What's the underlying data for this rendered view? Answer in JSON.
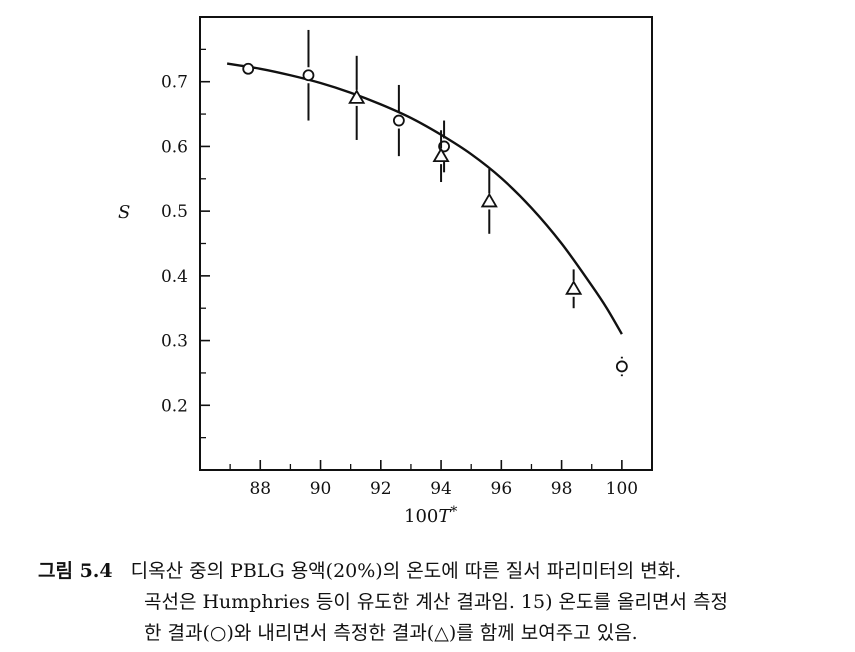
{
  "chart_data": {
    "type": "scatter",
    "xlabel": "100T*",
    "ylabel": "S",
    "xlim": [
      86,
      101
    ],
    "ylim": [
      0.1,
      0.8
    ],
    "xticks": [
      88,
      90,
      92,
      94,
      96,
      98,
      100
    ],
    "xtick_labels": [
      "88",
      "90",
      "92",
      "94",
      "96",
      "98",
      "100"
    ],
    "yticks": [
      0.2,
      0.3,
      0.4,
      0.5,
      0.6,
      0.7
    ],
    "ytick_labels": [
      "0.2",
      "0.3",
      "0.4",
      "0.5",
      "0.6",
      "0.7"
    ],
    "series": [
      {
        "marker": "circle",
        "points": [
          {
            "x": 87.6,
            "y": 0.72,
            "err": 0.0
          },
          {
            "x": 89.6,
            "y": 0.71,
            "err": 0.07
          },
          {
            "x": 92.6,
            "y": 0.64,
            "err": 0.055
          },
          {
            "x": 94.1,
            "y": 0.6,
            "err": 0.04
          },
          {
            "x": 100.0,
            "y": 0.26,
            "err": 0.015
          }
        ]
      },
      {
        "marker": "triangle",
        "points": [
          {
            "x": 91.2,
            "y": 0.675,
            "err": 0.065
          },
          {
            "x": 94.0,
            "y": 0.585,
            "err": 0.04
          },
          {
            "x": 95.6,
            "y": 0.515,
            "err": 0.05
          },
          {
            "x": 98.4,
            "y": 0.38,
            "err": 0.03
          }
        ]
      },
      {
        "marker": "none",
        "line": true,
        "points": [
          {
            "x": 86.9,
            "y": 0.728
          },
          {
            "x": 88,
            "y": 0.72
          },
          {
            "x": 89,
            "y": 0.71
          },
          {
            "x": 90,
            "y": 0.698
          },
          {
            "x": 91,
            "y": 0.683
          },
          {
            "x": 92,
            "y": 0.665
          },
          {
            "x": 93,
            "y": 0.644
          },
          {
            "x": 94,
            "y": 0.618
          },
          {
            "x": 95,
            "y": 0.588
          },
          {
            "x": 96,
            "y": 0.551
          },
          {
            "x": 97,
            "y": 0.505
          },
          {
            "x": 98,
            "y": 0.45
          },
          {
            "x": 99,
            "y": 0.385
          },
          {
            "x": 99.5,
            "y": 0.35
          },
          {
            "x": 100,
            "y": 0.31
          }
        ]
      }
    ]
  },
  "caption": {
    "figure_label": "그림 5.4",
    "line1": "디옥산 중의 PBLG 용액(20%)의 온도에 따른 질서 파리미터의 변화.",
    "line2": "곡선은 Humphries 등이 유도한 계산 결과임. 15) 온도를 올리면서 측정",
    "line3": "한 결과(○)와 내리면서 측정한 결과(△)를 함께 보여주고 있음."
  }
}
